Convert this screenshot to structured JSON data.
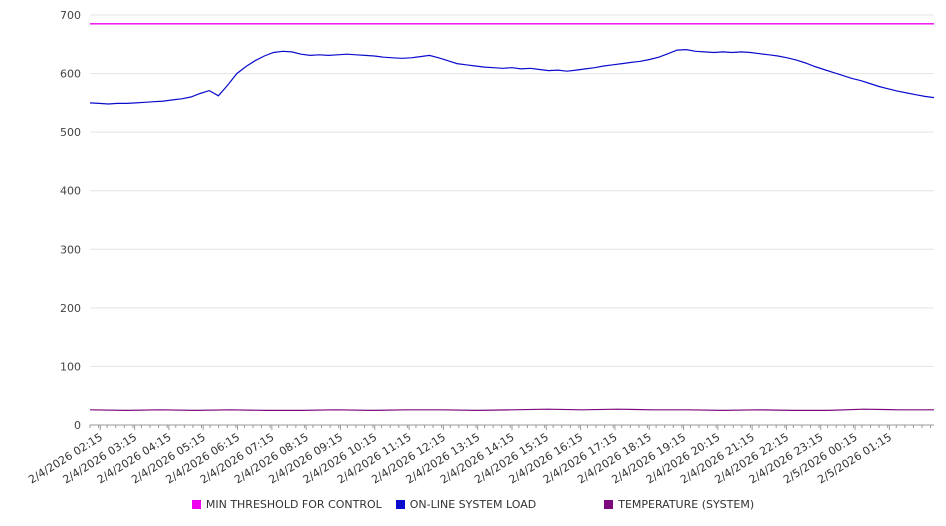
{
  "chart_data": {
    "type": "line",
    "title": "",
    "xlabel": "",
    "ylabel": "",
    "ylim": [
      0,
      700
    ],
    "yticks": [
      0,
      100,
      200,
      300,
      400,
      500,
      600,
      700
    ],
    "grid": true,
    "legend_position": "bottom",
    "x_labels": [
      "2/4/2026 02:15",
      "2/4/2026 03:15",
      "2/4/2026 04:15",
      "2/4/2026 05:15",
      "2/4/2026 06:15",
      "2/4/2026 07:15",
      "2/4/2026 08:15",
      "2/4/2026 09:15",
      "2/4/2026 10:15",
      "2/4/2026 11:15",
      "2/4/2026 12:15",
      "2/4/2026 13:15",
      "2/4/2026 14:15",
      "2/4/2026 15:15",
      "2/4/2026 16:15",
      "2/4/2026 17:15",
      "2/4/2026 18:15",
      "2/4/2026 19:15",
      "2/4/2026 20:15",
      "2/4/2026 21:15",
      "2/4/2026 22:15",
      "2/4/2026 23:15",
      "2/5/2026 00:15",
      "2/5/2026 01:15"
    ],
    "series": [
      {
        "name": "MIN THRESHOLD FOR CONTROL",
        "color": "#ee00ee",
        "values": [
          685,
          685
        ]
      },
      {
        "name": "ON-LINE SYSTEM LOAD",
        "color": "#0b0bcd",
        "values": [
          550,
          549,
          548,
          549,
          549,
          550,
          551,
          552,
          553,
          555,
          557,
          560,
          566,
          571,
          562,
          580,
          600,
          612,
          622,
          630,
          636,
          638,
          637,
          633,
          631,
          632,
          631,
          632,
          633,
          632,
          631,
          630,
          628,
          627,
          626,
          627,
          629,
          631,
          627,
          622,
          617,
          615,
          613,
          611,
          610,
          609,
          610,
          608,
          609,
          607,
          605,
          606,
          604,
          606,
          608,
          610,
          613,
          615,
          617,
          619,
          621,
          624,
          628,
          634,
          640,
          641,
          638,
          637,
          636,
          637,
          636,
          637,
          636,
          634,
          632,
          630,
          627,
          623,
          618,
          612,
          607,
          602,
          597,
          592,
          588,
          583,
          578,
          574,
          570,
          567,
          564,
          561,
          559
        ]
      },
      {
        "name": "TEMPERATURE (SYSTEM)",
        "color": "#7d0a7d",
        "values": [
          26,
          25,
          26,
          25,
          26,
          25,
          25,
          26,
          25,
          26,
          26,
          25,
          26,
          27,
          26,
          27,
          26,
          26,
          25,
          26,
          25,
          25,
          27,
          26,
          26
        ]
      }
    ],
    "colors": {
      "gridline": "#e3e3e3",
      "axis": "#999999",
      "tick_label": "#444444",
      "background": "#ffffff"
    }
  }
}
